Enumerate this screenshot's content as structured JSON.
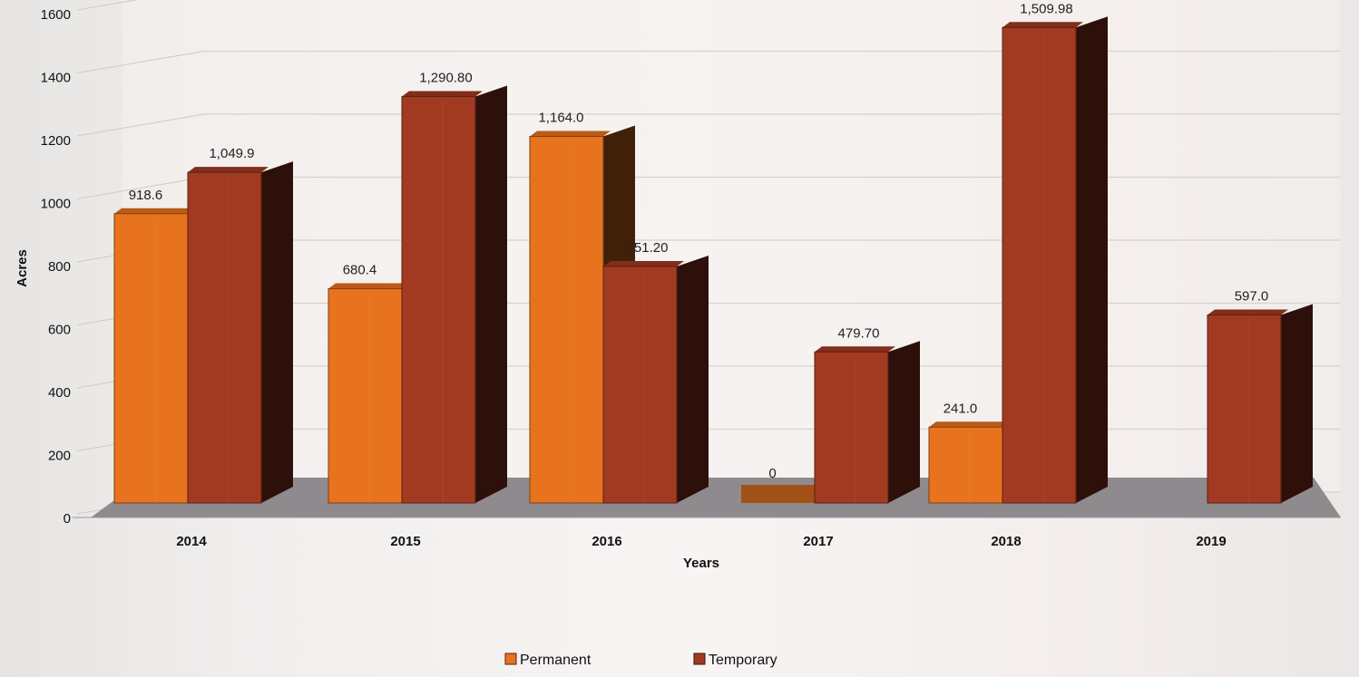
{
  "chart_data": {
    "type": "bar",
    "title": "",
    "xlabel": "Years",
    "ylabel": "Acres",
    "ylim": [
      0,
      1600
    ],
    "yticks": [
      0,
      200,
      400,
      600,
      800,
      1000,
      1200,
      1400,
      1600
    ],
    "grid": true,
    "legend_position": "bottom",
    "categories": [
      "2014",
      "2015",
      "2016",
      "2017",
      "2018",
      "2019"
    ],
    "series": [
      {
        "name": "Permanent",
        "color": "#e8731f",
        "values": [
          918.6,
          680.4,
          1164.0,
          0,
          241.0,
          null
        ],
        "labels": [
          "918.6",
          "680.4",
          "1,164.0",
          "0",
          "241.0",
          ""
        ]
      },
      {
        "name": "Temporary",
        "color": "#a23a22",
        "values": [
          1049.9,
          1290.8,
          751.2,
          479.7,
          1509.98,
          597.0
        ],
        "labels": [
          "1,049.9",
          "1,290.80",
          "751.20",
          "479.70",
          "1,509.98",
          "597.0"
        ]
      }
    ]
  }
}
